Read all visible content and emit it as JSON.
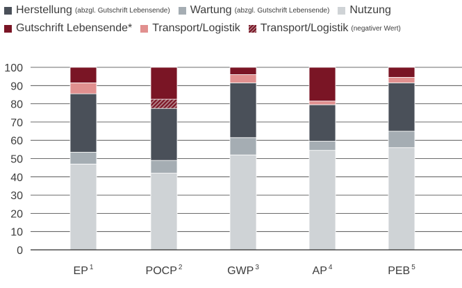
{
  "legend": {
    "items": [
      {
        "label": "Herstellung",
        "note": "(abzgl. Gutschrift Lebensende)",
        "color": "#4a5059",
        "hatched": false
      },
      {
        "label": "Wartung",
        "note": "(abzgl. Gutschrift Lebensende)",
        "color": "#a5adb3",
        "hatched": false
      },
      {
        "label": "Nutzung",
        "note": "",
        "color": "#cfd3d6",
        "hatched": false
      },
      {
        "label": "Gutschrift Lebensende*",
        "note": "",
        "color": "#7a1525",
        "hatched": false
      },
      {
        "label": "Transport/Logistik",
        "note": "",
        "color": "#e1908f",
        "hatched": false
      },
      {
        "label": "Transport/Logistik",
        "note": "(negativer Wert)",
        "color": "#7a1525",
        "hatched": true
      }
    ]
  },
  "chart_data": {
    "type": "bar",
    "stacked": true,
    "ylim": [
      0,
      100
    ],
    "yticks": [
      0,
      10,
      20,
      30,
      40,
      50,
      60,
      70,
      80,
      90,
      100
    ],
    "categories": [
      {
        "label": "EP",
        "sup": "1"
      },
      {
        "label": "POCP",
        "sup": "2"
      },
      {
        "label": "GWP",
        "sup": "3"
      },
      {
        "label": "AP",
        "sup": "4"
      },
      {
        "label": "PEB",
        "sup": "5"
      }
    ],
    "series": [
      {
        "name": "Nutzung",
        "color": "#cfd3d6",
        "hatched": false,
        "values": [
          47,
          42,
          52,
          54.5,
          56
        ]
      },
      {
        "name": "Wartung (abzgl. Gutschrift Lebensende)",
        "color": "#a5adb3",
        "hatched": false,
        "values": [
          6.5,
          7,
          9.5,
          5,
          9
        ]
      },
      {
        "name": "Herstellung (abzgl. Gutschrift Lebensende)",
        "color": "#4a5059",
        "hatched": false,
        "values": [
          32,
          28.5,
          30,
          20,
          26.5
        ]
      },
      {
        "name": "Transport/Logistik (negativer Wert)",
        "color": "#7a1525",
        "hatched": true,
        "values": [
          0,
          5,
          0,
          0,
          0
        ]
      },
      {
        "name": "Transport/Logistik",
        "color": "#e1908f",
        "hatched": false,
        "values": [
          6,
          0,
          4.5,
          2,
          3
        ]
      },
      {
        "name": "Gutschrift Lebensende*",
        "color": "#7a1525",
        "hatched": false,
        "values": [
          8.5,
          17.5,
          4,
          18.5,
          5.5
        ]
      }
    ]
  }
}
